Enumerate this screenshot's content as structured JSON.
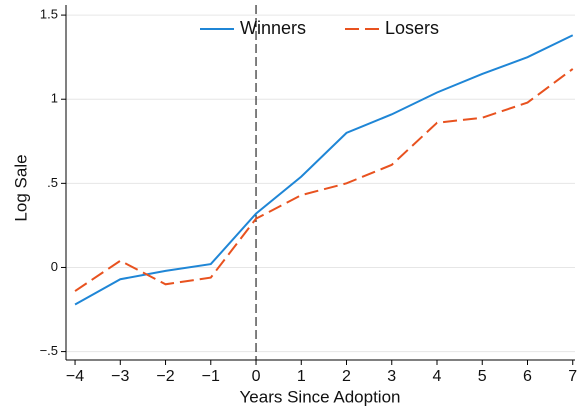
{
  "chart_data": {
    "type": "line",
    "x_label": "Years Since Adoption",
    "y_label": "Log Sale",
    "x": [
      -4,
      -3,
      -2,
      -1,
      0,
      1,
      2,
      3,
      4,
      5,
      6,
      7
    ],
    "series": [
      {
        "name": "Winners",
        "color": "#1f86d6",
        "dash": "solid",
        "values": [
          -0.22,
          -0.07,
          -0.02,
          0.02,
          0.32,
          0.54,
          0.8,
          0.91,
          1.04,
          1.15,
          1.25,
          1.38
        ]
      },
      {
        "name": "Losers",
        "color": "#e8521f",
        "dash": "dashed",
        "values": [
          -0.14,
          0.04,
          -0.1,
          -0.06,
          0.29,
          0.43,
          0.5,
          0.61,
          0.86,
          0.89,
          0.98,
          1.18
        ]
      }
    ],
    "xlim": [
      -4.2,
      7.05
    ],
    "ylim": [
      -0.55,
      1.56
    ],
    "xticks": [
      {
        "value": -4,
        "label": "−4"
      },
      {
        "value": -3,
        "label": "−3"
      },
      {
        "value": -2,
        "label": "−2"
      },
      {
        "value": -1,
        "label": "−1"
      },
      0,
      1,
      2,
      3,
      4,
      5,
      6,
      7
    ],
    "yticks": [
      {
        "value": -0.5,
        "label": "−.5"
      },
      0,
      {
        "value": 0.5,
        "label": ".5"
      },
      1,
      1.5
    ],
    "vline": 0,
    "grid": true,
    "legend": "top"
  }
}
